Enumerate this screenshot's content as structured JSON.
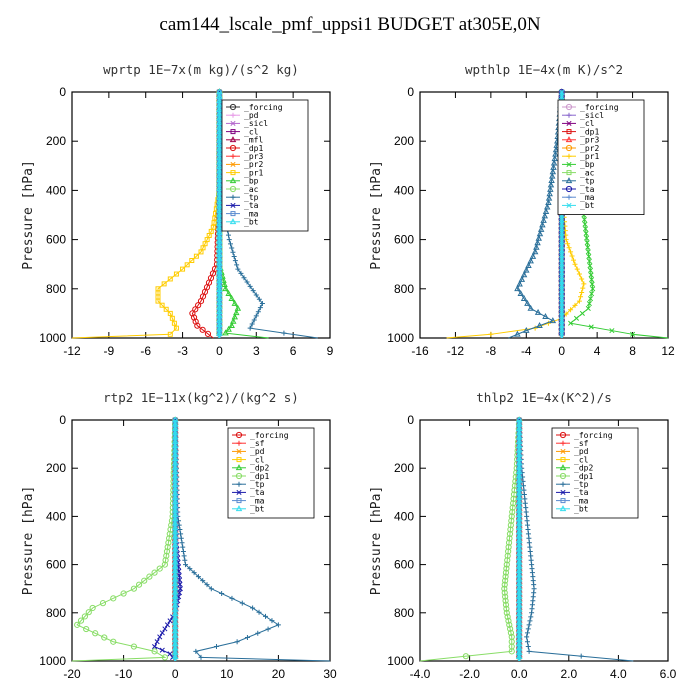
{
  "figure": {
    "title": "cam144_lscale_pmf_uppsi1  BUDGET at305E,0N"
  },
  "chart_data": [
    {
      "type": "line",
      "title": "wprtp   1E−7x(m kg)/(s^2 kg)",
      "ylabel": "Pressure [hPa]",
      "ylim": [
        1000,
        0
      ],
      "xlim": [
        -12,
        9
      ],
      "xticks": [
        "-12",
        "-9",
        "-6",
        "-3",
        "0",
        "3",
        "6",
        "9"
      ],
      "yticks": [
        "0",
        "200",
        "400",
        "600",
        "800",
        "1000"
      ],
      "series": [
        {
          "name": "_forcing",
          "color": "#333333",
          "points": [
            [
              0,
              0
            ],
            [
              0,
              500
            ],
            [
              0,
              1000
            ]
          ]
        },
        {
          "name": "_pd",
          "color": "#e699e6",
          "points": [
            [
              0,
              0
            ],
            [
              0,
              1000
            ]
          ]
        },
        {
          "name": "_sicl",
          "color": "#b366cc",
          "points": [
            [
              0,
              0
            ],
            [
              0,
              1000
            ]
          ]
        },
        {
          "name": "_cl",
          "color": "#800080",
          "points": [
            [
              0,
              0
            ],
            [
              0,
              1000
            ]
          ]
        },
        {
          "name": "_mfl",
          "color": "#a0004a",
          "points": [
            [
              0,
              0
            ],
            [
              0,
              1000
            ]
          ]
        },
        {
          "name": "_dp1",
          "color": "#dd1111",
          "points": [
            [
              0,
              0
            ],
            [
              0,
              400
            ],
            [
              -0.2,
              700
            ],
            [
              -1.5,
              850
            ],
            [
              -2.2,
              900
            ],
            [
              -1.8,
              950
            ],
            [
              -0.5,
              1000
            ]
          ]
        },
        {
          "name": "_pr3",
          "color": "#ff3333",
          "points": [
            [
              0,
              0
            ],
            [
              0,
              1000
            ]
          ]
        },
        {
          "name": "_pr2",
          "color": "#ff9900",
          "points": [
            [
              0,
              0
            ],
            [
              0,
              1000
            ]
          ]
        },
        {
          "name": "_pr1",
          "color": "#ffcc00",
          "points": [
            [
              0,
              0
            ],
            [
              0,
              400
            ],
            [
              -0.5,
              550
            ],
            [
              -1.5,
              650
            ],
            [
              -3,
              720
            ],
            [
              -5,
              800
            ],
            [
              -5,
              850
            ],
            [
              -4,
              900
            ],
            [
              -3.5,
              960
            ],
            [
              -4,
              985
            ],
            [
              -12,
              1000
            ]
          ]
        },
        {
          "name": "_bp",
          "color": "#33cc33",
          "points": [
            [
              0,
              0
            ],
            [
              0,
              700
            ],
            [
              0.5,
              800
            ],
            [
              1.5,
              880
            ],
            [
              1,
              950
            ],
            [
              0.5,
              980
            ],
            [
              4,
              1000
            ]
          ]
        },
        {
          "name": "_ac",
          "color": "#88dd66",
          "points": [
            [
              0,
              0
            ],
            [
              0,
              1000
            ]
          ]
        },
        {
          "name": "_tp",
          "color": "#2a6f9a",
          "points": [
            [
              0,
              0
            ],
            [
              0.1,
              400
            ],
            [
              0.8,
              600
            ],
            [
              1.5,
              720
            ],
            [
              3.5,
              860
            ],
            [
              2.5,
              960
            ],
            [
              8,
              1000
            ]
          ]
        },
        {
          "name": "_ta",
          "color": "#1a1aaa",
          "points": [
            [
              0,
              0
            ],
            [
              0,
              1000
            ]
          ]
        },
        {
          "name": "_ma",
          "color": "#5a8ad0",
          "points": [
            [
              0,
              0
            ],
            [
              0,
              1000
            ]
          ]
        },
        {
          "name": "_bt",
          "color": "#33ddee",
          "points": [
            [
              0,
              0
            ],
            [
              0,
              1000
            ]
          ]
        }
      ]
    },
    {
      "type": "line",
      "title": "wpthlp   1E−4x(m K)/s^2",
      "ylabel": "Pressure [hPa]",
      "ylim": [
        1000,
        0
      ],
      "xlim": [
        -16,
        12
      ],
      "xticks": [
        "-16",
        "-12",
        "-8",
        "-4",
        "0",
        "4",
        "8",
        "12"
      ],
      "yticks": [
        "0",
        "200",
        "400",
        "600",
        "800",
        "1000"
      ],
      "series": [
        {
          "name": "_forcing",
          "color": "#cc99cc",
          "points": [
            [
              0,
              0
            ],
            [
              0,
              1000
            ]
          ]
        },
        {
          "name": "_sicl",
          "color": "#8866cc",
          "points": [
            [
              0,
              0
            ],
            [
              0,
              1000
            ]
          ]
        },
        {
          "name": "_cl",
          "color": "#800080",
          "points": [
            [
              0,
              0
            ],
            [
              0,
              1000
            ]
          ]
        },
        {
          "name": "_dp1",
          "color": "#dd1111",
          "points": [
            [
              0,
              0
            ],
            [
              0,
              1000
            ]
          ]
        },
        {
          "name": "_pr3",
          "color": "#ff3333",
          "points": [
            [
              0,
              0
            ],
            [
              0,
              1000
            ]
          ]
        },
        {
          "name": "_pr2",
          "color": "#ff9900",
          "points": [
            [
              0,
              0
            ],
            [
              0,
              1000
            ]
          ]
        },
        {
          "name": "_pr1",
          "color": "#ffcc00",
          "points": [
            [
              0,
              0
            ],
            [
              0,
              400
            ],
            [
              0.5,
              600
            ],
            [
              1.5,
              700
            ],
            [
              2.5,
              780
            ],
            [
              2,
              850
            ],
            [
              0,
              920
            ],
            [
              -3,
              960
            ],
            [
              -8,
              985
            ],
            [
              -13,
              1000
            ]
          ]
        },
        {
          "name": "_bp",
          "color": "#33cc33",
          "points": [
            [
              0,
              0
            ],
            [
              0.5,
              200
            ],
            [
              1.5,
              350
            ],
            [
              2.5,
              500
            ],
            [
              3,
              650
            ],
            [
              3.5,
              800
            ],
            [
              3,
              880
            ],
            [
              1,
              940
            ],
            [
              8,
              985
            ],
            [
              12,
              1000
            ]
          ]
        },
        {
          "name": "_ac",
          "color": "#88dd66",
          "points": [
            [
              0,
              0
            ],
            [
              0,
              1000
            ]
          ]
        },
        {
          "name": "_tp",
          "color": "#2a6f9a",
          "points": [
            [
              0,
              0
            ],
            [
              -0.5,
              200
            ],
            [
              -1.5,
              450
            ],
            [
              -3,
              650
            ],
            [
              -5,
              800
            ],
            [
              -3.5,
              880
            ],
            [
              -1,
              930
            ],
            [
              -4,
              970
            ],
            [
              -6,
              1000
            ]
          ]
        },
        {
          "name": "_ta",
          "color": "#1a1aaa",
          "points": [
            [
              0,
              0
            ],
            [
              0,
              1000
            ]
          ]
        },
        {
          "name": "_ma",
          "color": "#5a8ad0",
          "points": [
            [
              0,
              0
            ],
            [
              0,
              1000
            ]
          ]
        },
        {
          "name": "_bt",
          "color": "#33ddee",
          "points": [
            [
              0,
              0
            ],
            [
              0,
              1000
            ]
          ]
        }
      ]
    },
    {
      "type": "line",
      "title": "rtp2   1E−11x(kg^2)/(kg^2 s)",
      "ylabel": "Pressure [hPa]",
      "ylim": [
        1000,
        0
      ],
      "xlim": [
        -20,
        30
      ],
      "xticks": [
        "-20",
        "-10",
        "0",
        "10",
        "20",
        "30"
      ],
      "yticks": [
        "0",
        "200",
        "400",
        "600",
        "800",
        "1000"
      ],
      "series": [
        {
          "name": "_forcing",
          "color": "#dd1111",
          "points": [
            [
              0,
              0
            ],
            [
              0,
              1000
            ]
          ]
        },
        {
          "name": "_sf",
          "color": "#ff3333",
          "points": [
            [
              0,
              0
            ],
            [
              0,
              1000
            ]
          ]
        },
        {
          "name": "_pd",
          "color": "#ff9900",
          "points": [
            [
              0,
              0
            ],
            [
              0,
              1000
            ]
          ]
        },
        {
          "name": "_cl",
          "color": "#ffcc00",
          "points": [
            [
              0,
              0
            ],
            [
              0,
              1000
            ]
          ]
        },
        {
          "name": "_dp2",
          "color": "#33cc33",
          "points": [
            [
              0,
              0
            ],
            [
              0,
              1000
            ]
          ]
        },
        {
          "name": "_dp1",
          "color": "#88dd66",
          "points": [
            [
              0,
              0
            ],
            [
              -0.5,
              400
            ],
            [
              -2,
              600
            ],
            [
              -8,
              700
            ],
            [
              -16,
              780
            ],
            [
              -19,
              850
            ],
            [
              -12,
              920
            ],
            [
              -4,
              960
            ],
            [
              -2,
              985
            ],
            [
              -20,
              1000
            ]
          ]
        },
        {
          "name": "_tp",
          "color": "#2a6f9a",
          "points": [
            [
              0,
              0
            ],
            [
              0.5,
              400
            ],
            [
              2,
              600
            ],
            [
              7,
              700
            ],
            [
              15,
              780
            ],
            [
              20,
              850
            ],
            [
              12,
              920
            ],
            [
              4,
              960
            ],
            [
              5,
              985
            ],
            [
              30,
              1000
            ]
          ]
        },
        {
          "name": "_ta",
          "color": "#1a1aaa",
          "points": [
            [
              0,
              0
            ],
            [
              0.2,
              500
            ],
            [
              1,
              700
            ],
            [
              0,
              800
            ],
            [
              -3,
              900
            ],
            [
              -4,
              940
            ],
            [
              -1,
              970
            ],
            [
              0,
              1000
            ]
          ]
        },
        {
          "name": "_ma",
          "color": "#5a8ad0",
          "points": [
            [
              0,
              0
            ],
            [
              0,
              1000
            ]
          ]
        },
        {
          "name": "_bt",
          "color": "#33ddee",
          "points": [
            [
              0,
              0
            ],
            [
              0,
              1000
            ]
          ]
        }
      ]
    },
    {
      "type": "line",
      "title": "thlp2   1E−4x(K^2)/s",
      "ylabel": "Pressure [hPa]",
      "ylim": [
        1000,
        0
      ],
      "xlim": [
        -4,
        6
      ],
      "xticks": [
        "-4.0",
        "-2.0",
        "0.0",
        "2.0",
        "4.0",
        "6.0"
      ],
      "yticks": [
        "0",
        "200",
        "400",
        "600",
        "800",
        "1000"
      ],
      "series": [
        {
          "name": "_forcing",
          "color": "#dd1111",
          "points": [
            [
              0,
              0
            ],
            [
              0,
              1000
            ]
          ]
        },
        {
          "name": "_sf",
          "color": "#ff3333",
          "points": [
            [
              0,
              0
            ],
            [
              0,
              1000
            ]
          ]
        },
        {
          "name": "_pd",
          "color": "#ff9900",
          "points": [
            [
              0,
              0
            ],
            [
              0,
              1000
            ]
          ]
        },
        {
          "name": "_cl",
          "color": "#ffcc00",
          "points": [
            [
              0,
              0
            ],
            [
              0,
              1000
            ]
          ]
        },
        {
          "name": "_dp2",
          "color": "#33cc33",
          "points": [
            [
              0,
              0
            ],
            [
              0,
              1000
            ]
          ]
        },
        {
          "name": "_dp1",
          "color": "#88dd66",
          "points": [
            [
              0,
              0
            ],
            [
              -0.1,
              200
            ],
            [
              -0.3,
              400
            ],
            [
              -0.5,
              600
            ],
            [
              -0.6,
              700
            ],
            [
              -0.5,
              800
            ],
            [
              -0.3,
              900
            ],
            [
              -0.3,
              960
            ],
            [
              -4,
              1000
            ]
          ]
        },
        {
          "name": "_tp",
          "color": "#2a6f9a",
          "points": [
            [
              0,
              0
            ],
            [
              0.1,
              200
            ],
            [
              0.3,
              400
            ],
            [
              0.5,
              600
            ],
            [
              0.6,
              700
            ],
            [
              0.5,
              800
            ],
            [
              0.3,
              900
            ],
            [
              0.4,
              960
            ],
            [
              4.6,
              1000
            ]
          ]
        },
        {
          "name": "_ta",
          "color": "#1a1aaa",
          "points": [
            [
              0,
              0
            ],
            [
              0,
              1000
            ]
          ]
        },
        {
          "name": "_ma",
          "color": "#5a8ad0",
          "points": [
            [
              0,
              0
            ],
            [
              0,
              1000
            ]
          ]
        },
        {
          "name": "_bt",
          "color": "#33ddee",
          "points": [
            [
              0,
              0
            ],
            [
              0,
              1000
            ]
          ]
        }
      ]
    }
  ]
}
